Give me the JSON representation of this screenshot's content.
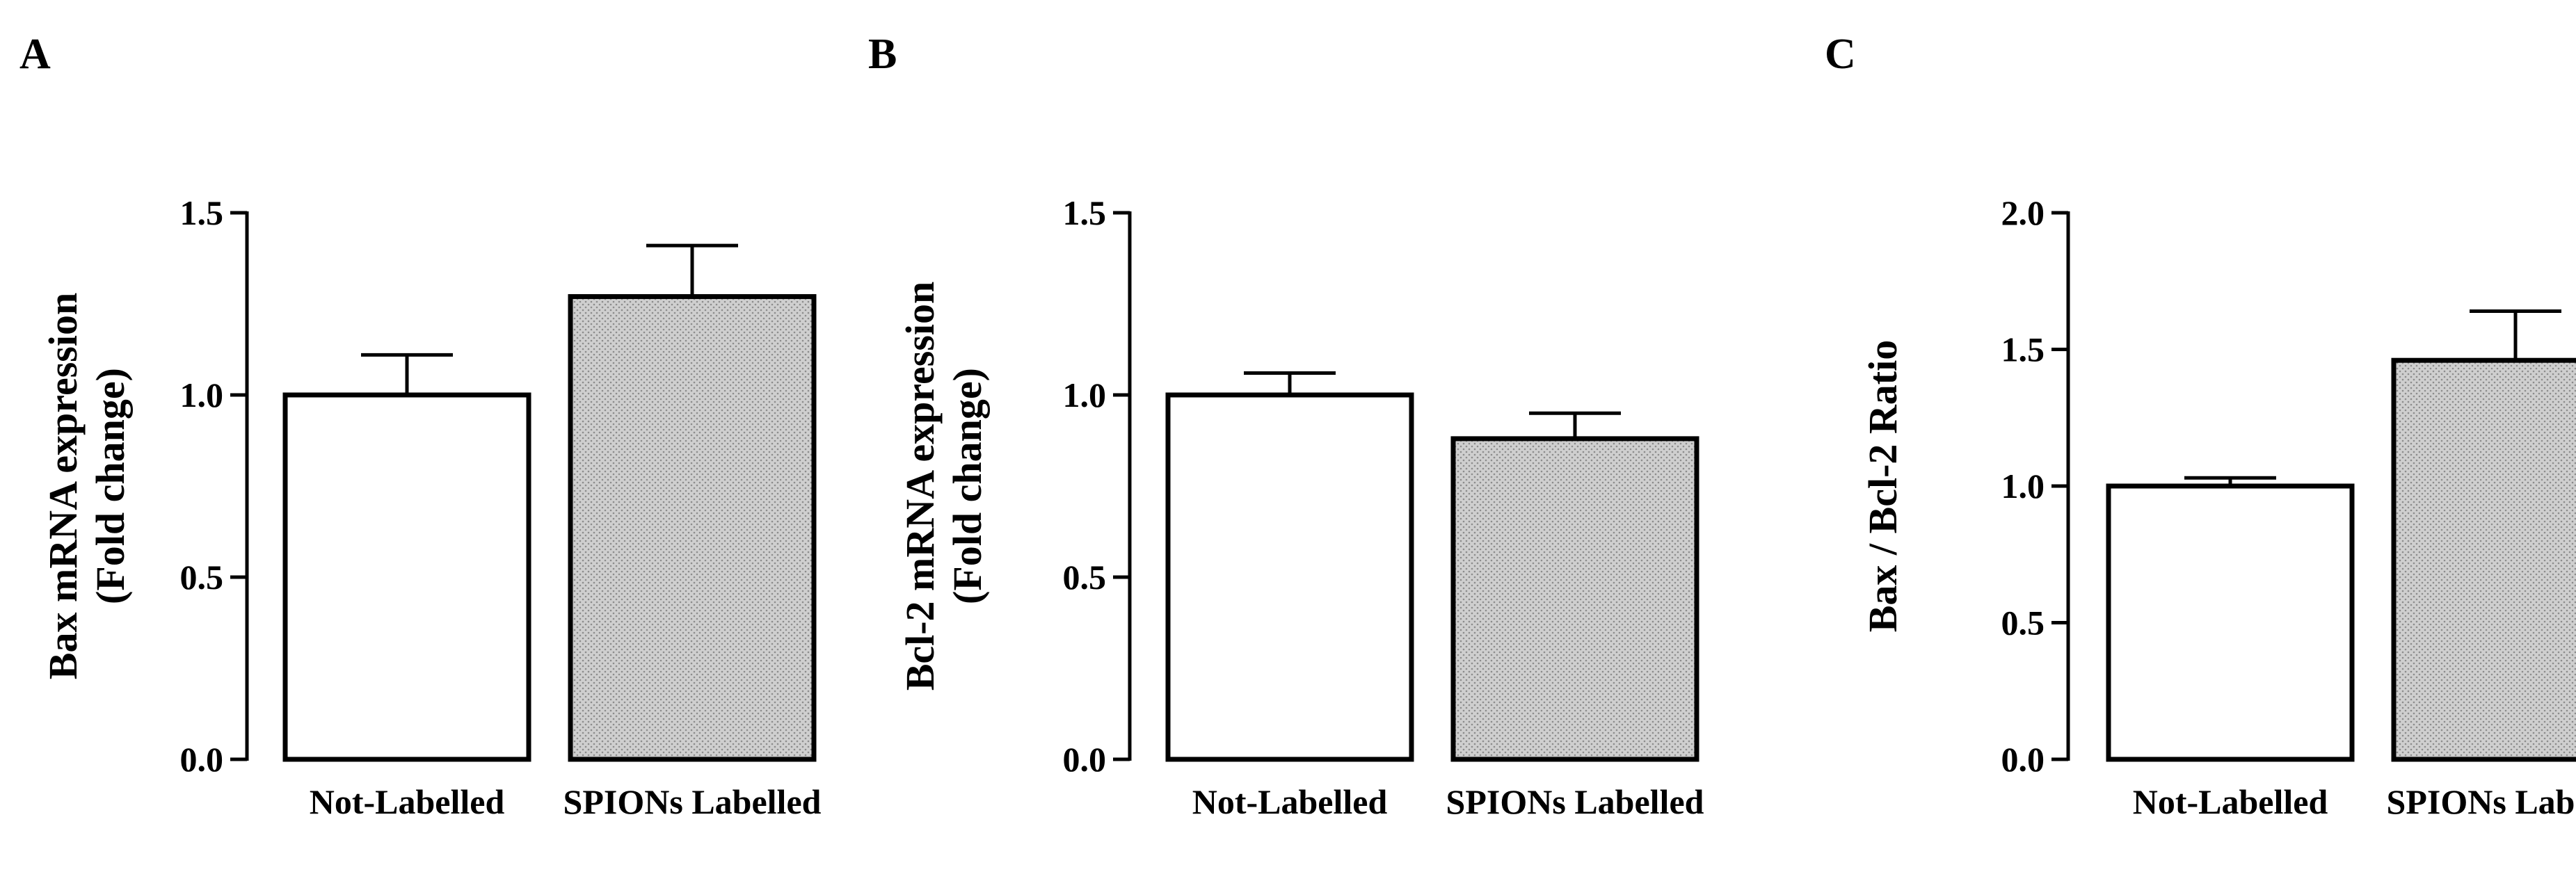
{
  "chart_data": [
    {
      "type": "bar",
      "panel_label": "A",
      "categories": [
        "Not-Labelled",
        "SPIONs Labelled"
      ],
      "values": [
        1.0,
        1.27
      ],
      "errors": [
        0.11,
        0.14
      ],
      "ylabel": "Bax mRNA expression",
      "ylabel2": "(Fold change)",
      "ylim": [
        0.0,
        1.5
      ],
      "yticks": [
        "0.0",
        "0.5",
        "1.0",
        "1.5"
      ],
      "ytick_values": [
        0.0,
        0.5,
        1.0,
        1.5
      ],
      "fills": [
        "white",
        "dotted-gray"
      ]
    },
    {
      "type": "bar",
      "panel_label": "B",
      "categories": [
        "Not-Labelled",
        "SPIONs Labelled"
      ],
      "values": [
        1.0,
        0.88
      ],
      "errors": [
        0.06,
        0.07
      ],
      "ylabel": "Bcl-2 mRNA expression",
      "ylabel2": "(Fold change)",
      "ylim": [
        0.0,
        1.5
      ],
      "yticks": [
        "0.0",
        "0.5",
        "1.0",
        "1.5"
      ],
      "ytick_values": [
        0.0,
        0.5,
        1.0,
        1.5
      ],
      "fills": [
        "white",
        "dotted-gray"
      ]
    },
    {
      "type": "bar",
      "panel_label": "C",
      "categories": [
        "Not-Labelled",
        "SPIONs Labelled"
      ],
      "values": [
        1.0,
        1.46
      ],
      "errors": [
        0.03,
        0.18
      ],
      "ylabel": "Bax / Bcl-2 Ratio",
      "ylabel2": "",
      "ylim": [
        0.0,
        2.0
      ],
      "yticks": [
        "0.0",
        "0.5",
        "1.0",
        "1.5",
        "2.0"
      ],
      "ytick_values": [
        0.0,
        0.5,
        1.0,
        1.5,
        2.0
      ],
      "fills": [
        "white",
        "dotted-gray"
      ]
    }
  ]
}
